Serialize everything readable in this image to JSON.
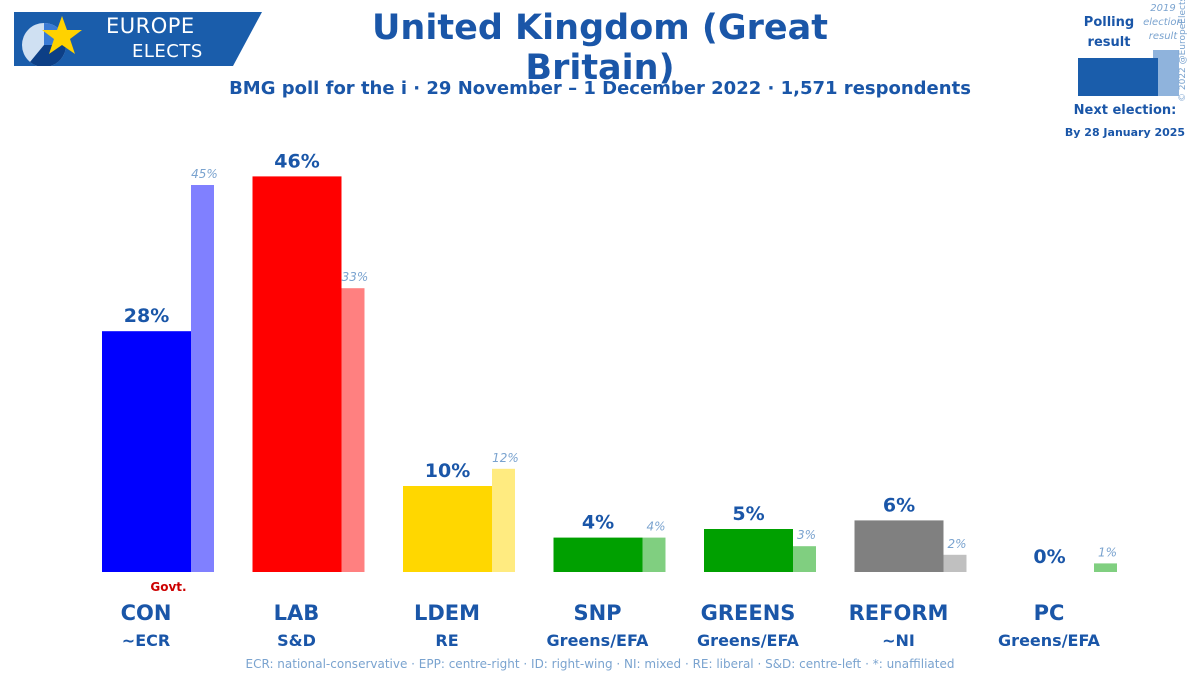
{
  "logo": {
    "line1": "EUROPE",
    "line2": "ELECTS"
  },
  "title": "United Kingdom (Great Britain)",
  "subtitle": "BMG poll for the i · 29 November – 1 December 2022 · 1,571 respondents",
  "legend": {
    "poll_label": "Polling result",
    "prev_label": "2019 election result",
    "next_election_label": "Next election:",
    "next_election_date": "By 28 January 2025"
  },
  "copyright": "© 2022 @EuropeElects",
  "footer": "ECR: national-conservative · EPP: centre-right · ID: right-wing · NI: mixed · RE: liberal · S&D: centre-left · *: unaffiliated",
  "colors": {
    "brand": "#1a56a8",
    "legend_poll": "#1a5dab",
    "legend_prev": "#8fb3dc",
    "prev_label": "#7aa3cf",
    "govt": "#cc0000"
  },
  "chart_data": {
    "type": "bar",
    "categories": [
      "CON",
      "LAB",
      "LDEM",
      "SNP",
      "GREENS",
      "REFORM",
      "PC"
    ],
    "groups": [
      "~ECR",
      "S&D",
      "RE",
      "Greens/EFA",
      "Greens/EFA",
      "~NI",
      "Greens/EFA"
    ],
    "series": [
      {
        "values": [
          28,
          46,
          10,
          4,
          5,
          6,
          0
        ],
        "labels": [
          "28%",
          "46%",
          "10%",
          "4%",
          "5%",
          "6%",
          "0%"
        ],
        "colors": [
          "#0000ff",
          "#ff0000",
          "#ffd700",
          "#00a000",
          "#00a000",
          "#808080",
          "#00a000"
        ]
      },
      {
        "values": [
          45,
          33,
          12,
          4,
          3,
          2,
          1
        ],
        "labels": [
          "45%",
          "33%",
          "12%",
          "4%",
          "3%",
          "2%",
          "1%"
        ],
        "colors": [
          "#8080ff",
          "#ff8080",
          "#ffeb80",
          "#80cf80",
          "#80cf80",
          "#c0c0c0",
          "#80cf80"
        ]
      }
    ],
    "govt_label": "Govt.",
    "govt_party": "CON",
    "ylim": [
      0,
      50
    ]
  }
}
